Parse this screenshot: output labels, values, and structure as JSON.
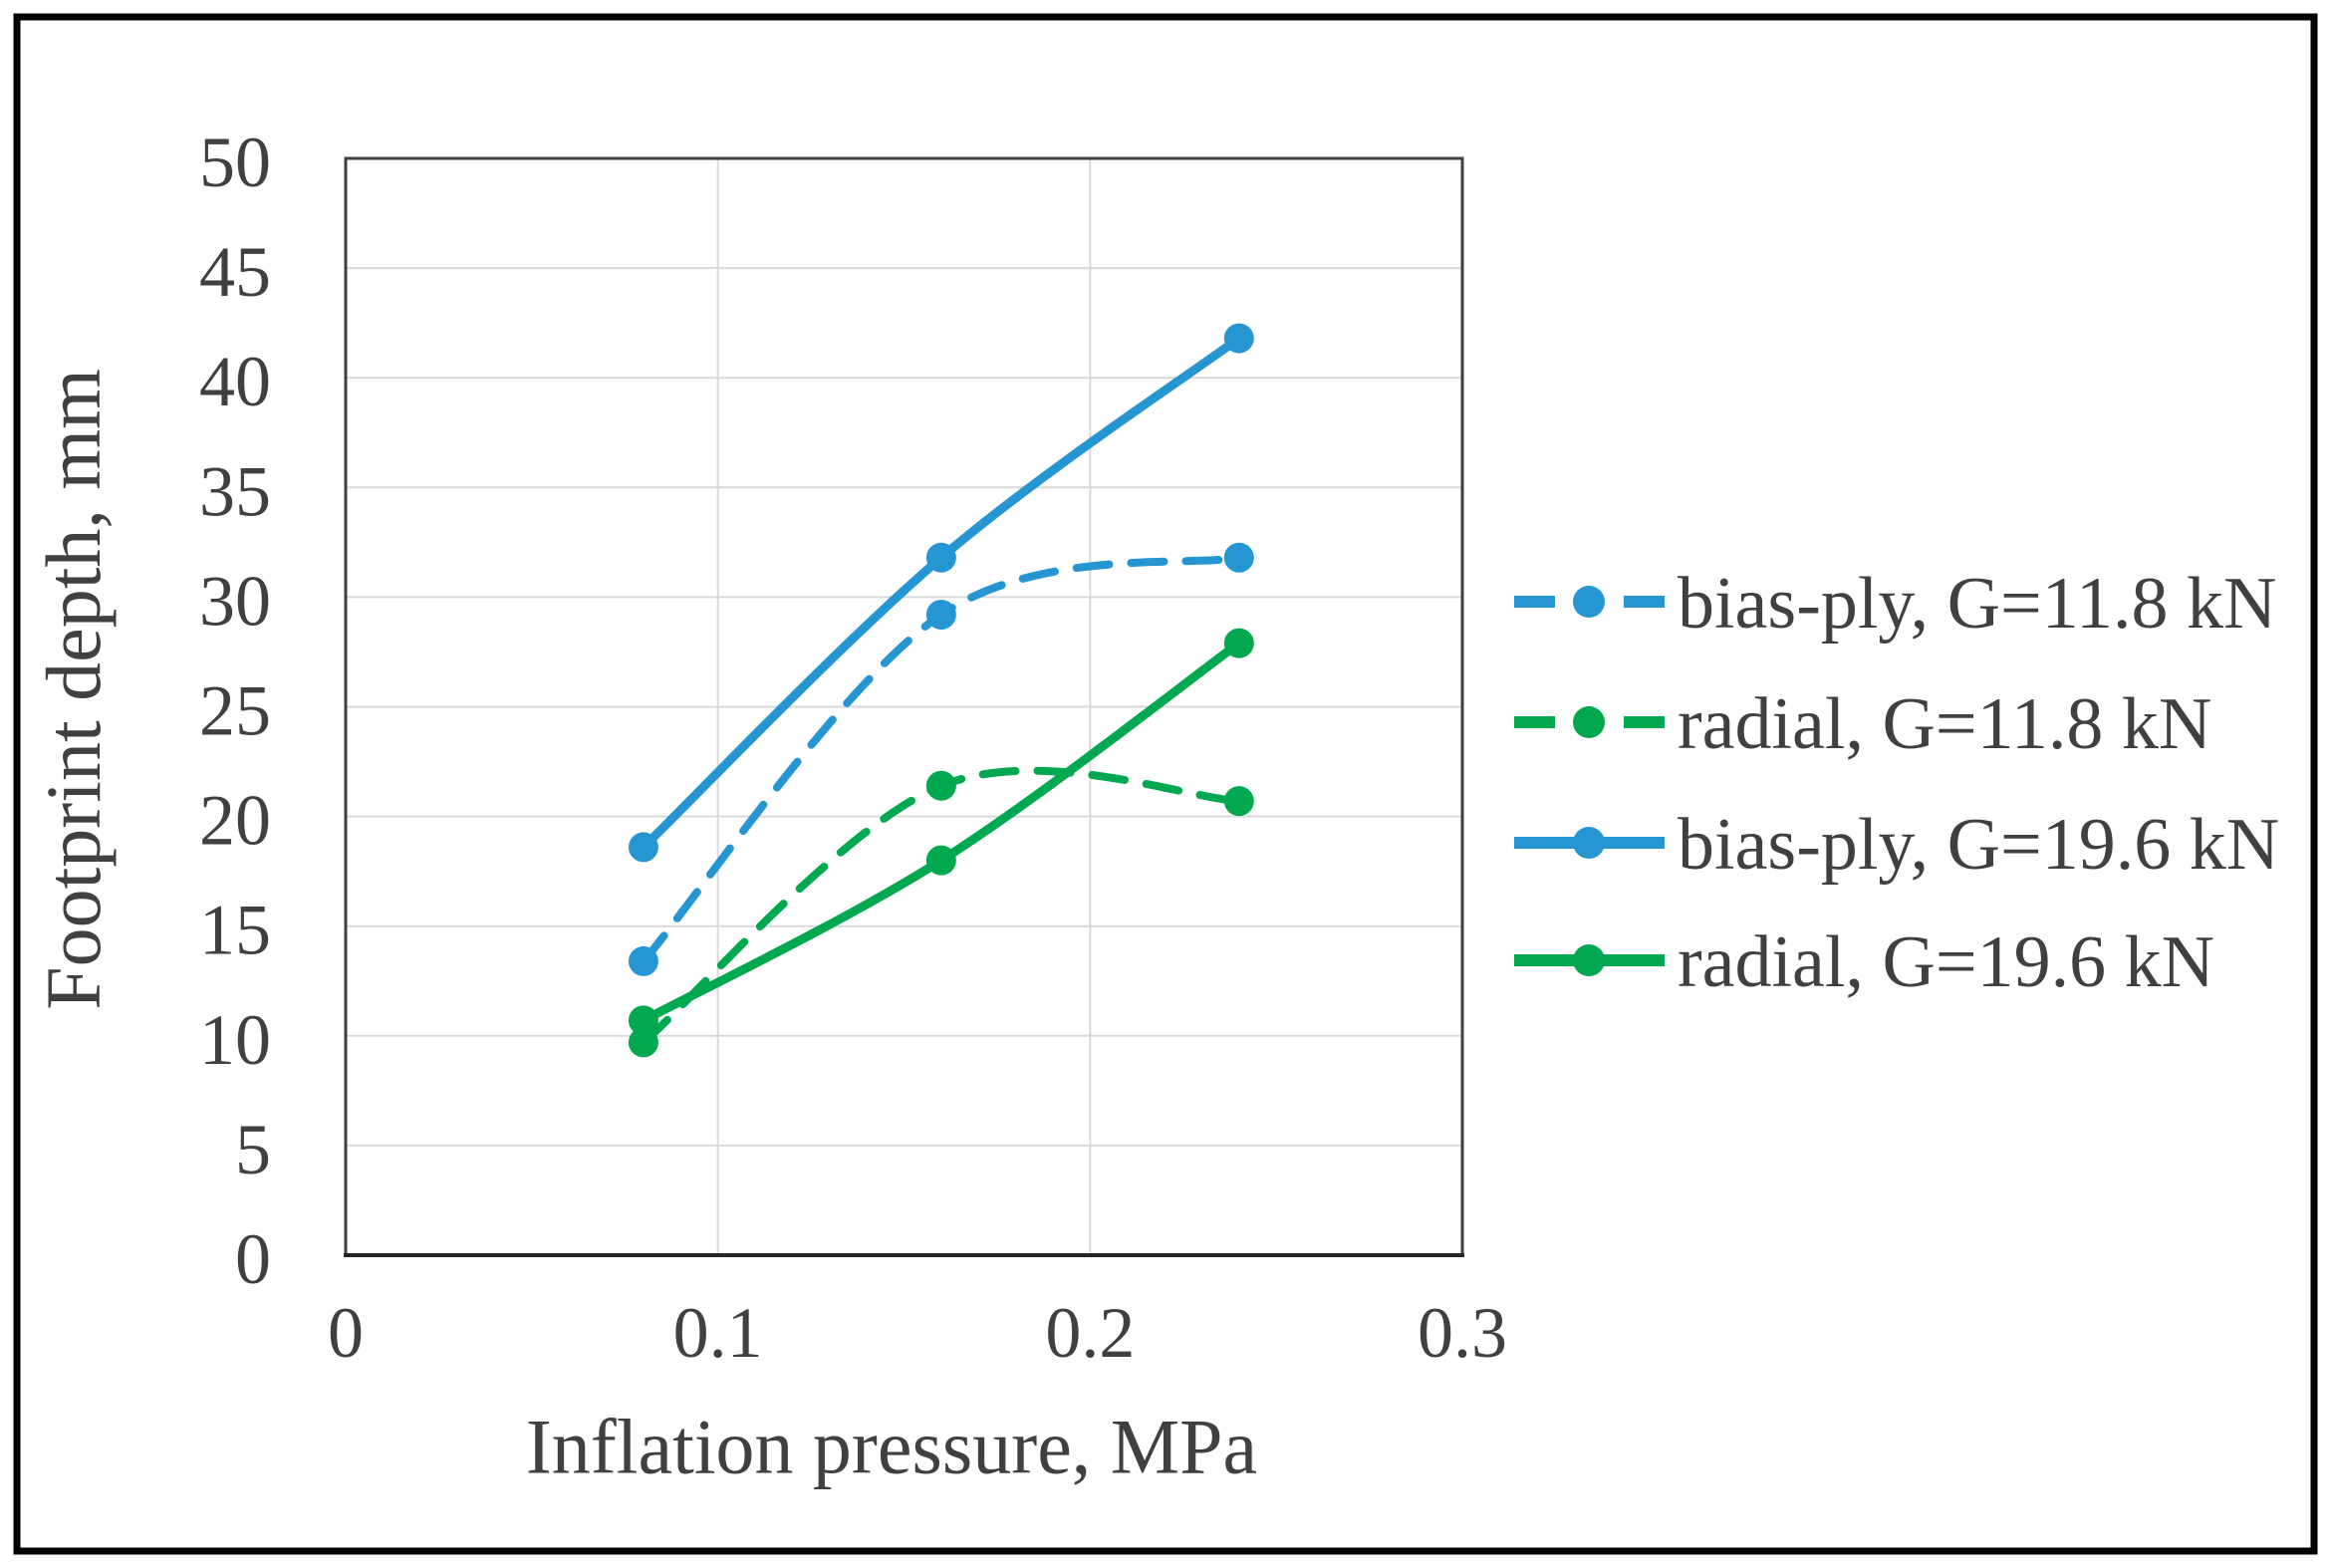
{
  "figure": {
    "background": "#ffffff",
    "border_color": "#000000",
    "text_color": "#404040",
    "grid_color": "#d9d9d9",
    "frame_color": "#3f3f3f"
  },
  "chart_data": {
    "type": "line",
    "title": "",
    "xlabel": "Inflation pressure,  MPa",
    "ylabel": "Footprint depth, mm",
    "xlim": [
      0,
      0.3
    ],
    "ylim": [
      0,
      50
    ],
    "xticks": [
      0,
      0.1,
      0.2,
      0.3
    ],
    "xtick_labels": [
      "0",
      "0.1",
      "0.2",
      "0.3"
    ],
    "yticks": [
      0,
      5,
      10,
      15,
      20,
      25,
      30,
      35,
      40,
      45,
      50
    ],
    "ytick_labels": [
      "0",
      "5",
      "10",
      "15",
      "20",
      "25",
      "30",
      "35",
      "40",
      "45",
      "50"
    ],
    "grid": true,
    "legend_position": "right",
    "x": [
      0.08,
      0.16,
      0.24
    ],
    "series": [
      {
        "name": "bias-ply, G=11.8 kN",
        "color": "#2596d2",
        "line_style": "dashed",
        "marker": "circle",
        "values": [
          13.4,
          29.2,
          31.8
        ]
      },
      {
        "name": "radial, G=11.8 kN",
        "color": "#00a94f",
        "line_style": "dashed",
        "marker": "circle",
        "values": [
          9.7,
          21.4,
          20.7
        ]
      },
      {
        "name": "bias-ply, G=19.6 kN",
        "color": "#2596d2",
        "line_style": "solid",
        "marker": "circle",
        "values": [
          18.6,
          31.8,
          41.8
        ]
      },
      {
        "name": "radial, G=19.6 kN",
        "color": "#00a94f",
        "line_style": "solid",
        "marker": "circle",
        "values": [
          10.7,
          18.0,
          27.9
        ]
      }
    ]
  }
}
